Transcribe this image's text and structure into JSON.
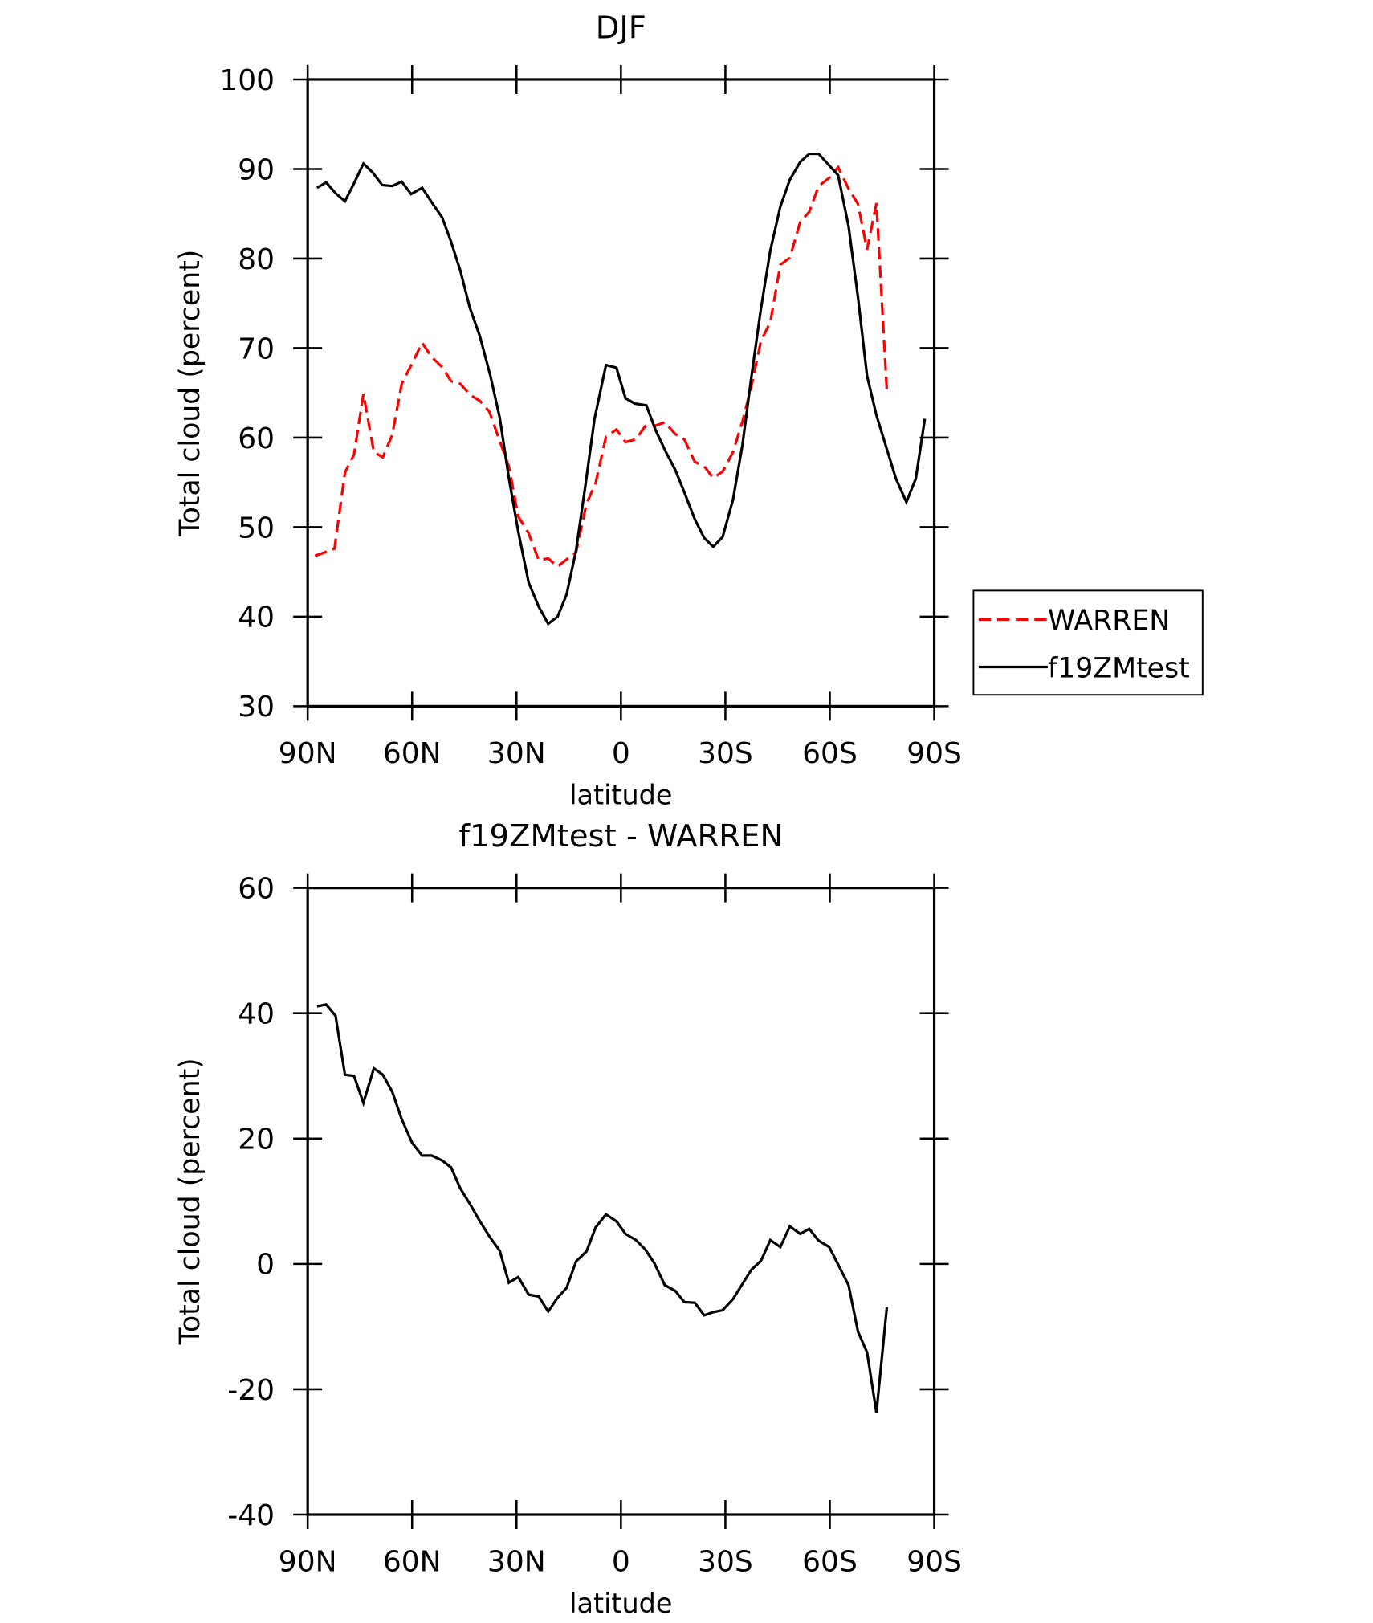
{
  "chart_data": [
    {
      "type": "line",
      "title": "DJF",
      "xlabel": "latitude",
      "ylabel": "Total cloud (percent)",
      "xlim": [
        90,
        -90
      ],
      "xticks": [
        {
          "value": 90,
          "label": "90N"
        },
        {
          "value": 60,
          "label": "60N"
        },
        {
          "value": 30,
          "label": "30N"
        },
        0,
        {
          "value": -30,
          "label": "30S"
        },
        {
          "value": -60,
          "label": "60S"
        },
        {
          "value": -90,
          "label": "90S"
        }
      ],
      "ylim": [
        30,
        100
      ],
      "yticks": [
        30,
        40,
        50,
        60,
        70,
        80,
        90,
        100
      ],
      "legend": "right",
      "series": [
        {
          "name": "WARREN",
          "color": "#ff0000",
          "line_style": "dashed",
          "x": [
            87.9,
            85.0,
            82.3,
            79.3,
            76.7,
            74.0,
            71.0,
            68.4,
            65.7,
            63.0,
            60.0,
            57.1,
            54.4,
            51.4,
            48.8,
            46.1,
            43.4,
            40.5,
            37.8,
            34.8,
            32.2,
            29.5,
            26.5,
            23.6,
            20.9,
            18.2,
            15.6,
            12.9,
            9.9,
            7.3,
            4.3,
            1.3,
            -1.3,
            -4.3,
            -7.0,
            -9.6,
            -12.6,
            -15.6,
            -18.2,
            -21.2,
            -23.9,
            -26.5,
            -29.2,
            -32.2,
            -34.9,
            -37.5,
            -40.2,
            -42.9,
            -45.8,
            -48.5,
            -51.5,
            -54.1,
            -56.8,
            -59.8,
            -62.4,
            -65.4,
            -68.1,
            -70.7,
            -73.4,
            -76.4
          ],
          "values": [
            46.8,
            47.2,
            47.6,
            56.1,
            58.1,
            64.9,
            58.4,
            57.8,
            60.3,
            66.0,
            68.3,
            70.6,
            69.0,
            67.9,
            66.3,
            66.0,
            64.8,
            64.1,
            62.9,
            59.6,
            56.8,
            51.2,
            49.3,
            46.3,
            46.5,
            45.6,
            46.4,
            47.2,
            52.6,
            54.9,
            60.1,
            60.9,
            59.5,
            59.8,
            61.3,
            61.3,
            61.7,
            60.4,
            59.8,
            57.3,
            56.8,
            55.5,
            56.2,
            58.4,
            61.8,
            65.8,
            70.8,
            72.9,
            79.3,
            80.1,
            84.1,
            85.2,
            88.1,
            89.0,
            90.2,
            87.8,
            86.1,
            81.0,
            86.2,
            65.2
          ]
        },
        {
          "name": "f19ZMtest",
          "color": "#000000",
          "line_style": "solid",
          "x": [
            87.3,
            84.7,
            82.0,
            79.3,
            76.7,
            74.0,
            71.3,
            68.6,
            65.7,
            63.0,
            60.3,
            57.1,
            54.4,
            51.4,
            48.8,
            46.1,
            43.4,
            40.5,
            37.5,
            34.8,
            32.2,
            29.5,
            26.5,
            23.6,
            20.9,
            18.2,
            15.6,
            12.9,
            10.2,
            7.6,
            4.3,
            1.3,
            -1.3,
            -4.0,
            -7.3,
            -10.0,
            -12.9,
            -15.6,
            -18.2,
            -21.2,
            -23.9,
            -26.5,
            -29.2,
            -32.2,
            -34.9,
            -37.5,
            -40.2,
            -42.9,
            -45.8,
            -48.5,
            -51.5,
            -54.1,
            -56.8,
            -59.8,
            -62.4,
            -65.4,
            -68.1,
            -70.7,
            -73.4,
            -76.4,
            -79.0,
            -82.0,
            -84.7,
            -87.3
          ],
          "values": [
            87.9,
            88.5,
            87.3,
            86.4,
            88.4,
            90.6,
            89.6,
            88.2,
            88.1,
            88.6,
            87.2,
            87.9,
            86.3,
            84.6,
            81.9,
            78.6,
            74.5,
            71.3,
            66.9,
            62.2,
            55.5,
            49.5,
            43.8,
            41.1,
            39.2,
            40.0,
            42.5,
            47.4,
            54.7,
            62.1,
            68.1,
            67.8,
            64.4,
            63.8,
            63.6,
            60.8,
            58.4,
            56.4,
            53.9,
            50.9,
            48.8,
            47.8,
            48.9,
            53.1,
            59.2,
            66.9,
            74.4,
            80.9,
            85.8,
            88.8,
            90.8,
            91.7,
            91.7,
            90.4,
            89.3,
            83.6,
            75.7,
            66.9,
            62.5,
            58.7,
            55.4,
            52.8,
            55.4,
            62.1
          ]
        }
      ]
    },
    {
      "type": "line",
      "title": "f19ZMtest - WARREN",
      "xlabel": "latitude",
      "ylabel": "Total cloud (percent)",
      "xlim": [
        90,
        -90
      ],
      "xticks": [
        {
          "value": 90,
          "label": "90N"
        },
        {
          "value": 60,
          "label": "60N"
        },
        {
          "value": 30,
          "label": "30N"
        },
        0,
        {
          "value": -30,
          "label": "30S"
        },
        {
          "value": -60,
          "label": "60S"
        },
        {
          "value": -90,
          "label": "90S"
        }
      ],
      "ylim": [
        -40,
        60
      ],
      "yticks": [
        -40,
        -20,
        0,
        20,
        40,
        60
      ],
      "series": [
        {
          "color": "#000000",
          "line_style": "solid",
          "x": [
            87.3,
            84.7,
            82.0,
            79.3,
            76.7,
            74.0,
            71.0,
            68.4,
            65.7,
            63.0,
            60.0,
            57.1,
            54.4,
            51.4,
            48.8,
            46.1,
            43.4,
            40.5,
            37.8,
            34.8,
            32.2,
            29.5,
            26.5,
            23.6,
            20.9,
            18.2,
            15.6,
            12.9,
            9.9,
            7.3,
            4.3,
            1.3,
            -1.3,
            -4.3,
            -7.0,
            -9.6,
            -12.6,
            -15.6,
            -18.2,
            -21.2,
            -23.9,
            -26.5,
            -29.2,
            -32.2,
            -34.9,
            -37.5,
            -40.2,
            -42.9,
            -45.8,
            -48.5,
            -51.5,
            -54.1,
            -56.8,
            -59.8,
            -62.4,
            -65.4,
            -68.1,
            -70.7,
            -73.4,
            -76.4
          ],
          "values": [
            41.1,
            41.4,
            39.6,
            30.2,
            30.0,
            25.7,
            31.2,
            30.2,
            27.5,
            23.1,
            19.3,
            17.3,
            17.3,
            16.5,
            15.4,
            12.0,
            9.6,
            6.8,
            4.4,
            2.1,
            -3.0,
            -2.1,
            -4.9,
            -5.2,
            -7.6,
            -5.4,
            -3.8,
            0.4,
            2.0,
            5.8,
            7.9,
            6.8,
            4.8,
            3.8,
            2.3,
            0.1,
            -3.4,
            -4.3,
            -6.1,
            -6.2,
            -8.2,
            -7.7,
            -7.4,
            -5.6,
            -3.2,
            -0.9,
            0.5,
            3.8,
            2.7,
            6.0,
            4.8,
            5.6,
            3.7,
            2.7,
            -0.1,
            -3.4,
            -10.8,
            -14.1,
            -23.7,
            -6.9
          ]
        }
      ]
    }
  ]
}
